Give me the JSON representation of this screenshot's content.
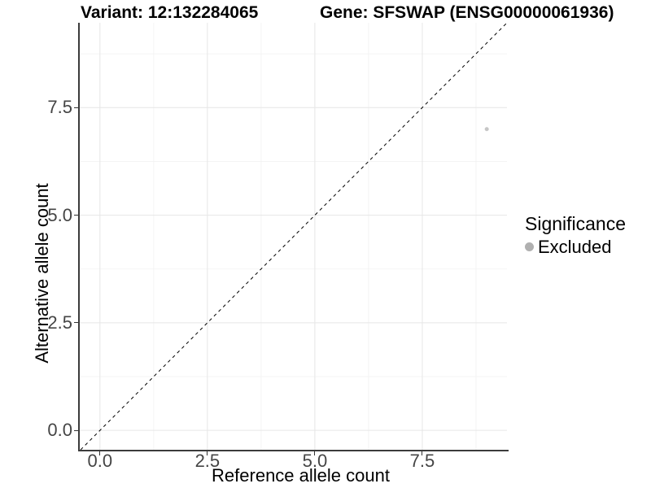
{
  "figure": {
    "titles": {
      "variant": "Variant: 12:132284065",
      "gene": "Gene: SFSWAP (ENSG00000061936)"
    }
  },
  "chart_data": {
    "type": "scatter",
    "title": "Variant: 12:132284065    Gene: SFSWAP (ENSG00000061936)",
    "xlabel": "Reference allele count",
    "ylabel": "Alternative allele count",
    "xlim": [
      -0.47,
      9.47
    ],
    "ylim": [
      -0.45,
      9.47
    ],
    "x_major_ticks": [
      0,
      2.5,
      5,
      7.5
    ],
    "x_tick_labels": [
      "0.0",
      "2.5",
      "5.0",
      "7.5"
    ],
    "y_major_ticks": [
      0,
      2.5,
      5,
      7.5
    ],
    "y_tick_labels": [
      "0.0",
      "2.5",
      "5.0",
      "7.5"
    ],
    "x_minor_ticks": [
      1.25,
      3.75,
      6.25,
      8.75
    ],
    "y_minor_ticks": [
      1.25,
      3.75,
      6.25,
      8.75
    ],
    "grid": "major+minor",
    "points": [
      {
        "x": 9,
        "y": 7,
        "significance": "Excluded"
      }
    ],
    "identity_line": {
      "equation": "y = x",
      "style": "dashed",
      "color": "#000000"
    },
    "legend": {
      "title": "Significance",
      "position": "right",
      "entries": [
        {
          "label": "Excluded",
          "color": "#b0b0b0"
        }
      ]
    },
    "style": {
      "point_color": "#c6c6c6",
      "point_radius_px": 2.5,
      "major_grid_color": "#e6e6e6",
      "minor_grid_color": "#f2f2f2",
      "axis_line_color": "#3c3c3c",
      "tick_color": "#333333",
      "tick_label_color": "#454545",
      "background": "#ffffff"
    }
  }
}
